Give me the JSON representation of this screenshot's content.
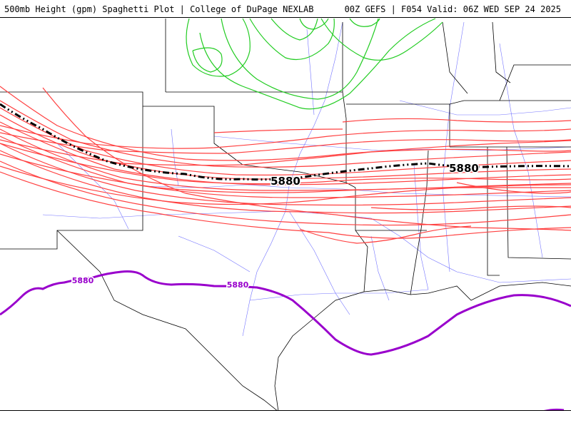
{
  "header": {
    "left": "500mb Height (gpm) Spaghetti Plot | College of DuPage NEXLAB",
    "right": "00Z GEFS | F054 Valid: 06Z WED SEP 24 2025"
  },
  "contour_labels": {
    "mean_label_1": "5880",
    "mean_label_2": "5880",
    "climo_label_1": "5880",
    "climo_label_2": "5880"
  },
  "colors": {
    "member_5880": "#ff4040",
    "member_north": "#22cc22",
    "ensemble_mean": "#000000",
    "climatology": "#9900cc",
    "states": "#000000",
    "roads": "#3333ff"
  }
}
